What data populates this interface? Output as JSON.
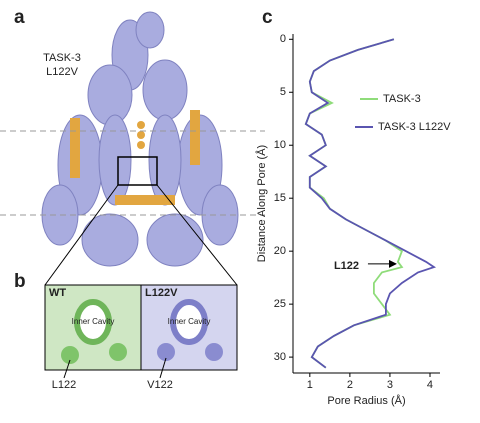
{
  "panels": {
    "a": {
      "letter": "a",
      "label_lines": [
        "TASK-3",
        "L122V"
      ]
    },
    "b": {
      "letter": "b",
      "left_title": "WT",
      "right_title": "L122V",
      "left_cavity": "Inner Cavity",
      "right_cavity": "Inner Cavity",
      "left_residue": "L122",
      "right_residue": "V122"
    },
    "c": {
      "letter": "c"
    }
  },
  "chart_data": {
    "type": "line",
    "orientation": "vertical",
    "xlabel": "Pore Radius (Å)",
    "ylabel": "Distance Along Pore (Å)",
    "y": [
      0,
      1,
      2,
      3,
      4,
      5,
      6,
      7,
      8,
      9,
      10,
      11,
      12,
      13,
      14,
      15,
      16,
      17,
      18,
      19,
      20,
      21,
      21.5,
      22,
      23,
      24,
      25,
      26,
      27,
      28,
      29,
      30,
      31
    ],
    "series": [
      {
        "name": "TASK-3",
        "color": "#8fdc7a",
        "values": [
          3.1,
          2.2,
          1.5,
          1.1,
          1.0,
          1.05,
          1.55,
          1.0,
          0.9,
          1.3,
          1.4,
          1.0,
          1.4,
          1.0,
          1.0,
          1.35,
          1.5,
          1.9,
          2.4,
          2.9,
          3.3,
          3.2,
          3.3,
          2.8,
          2.6,
          2.6,
          2.8,
          3.0,
          2.1,
          1.6,
          1.2,
          1.05,
          1.4
        ]
      },
      {
        "name": "TASK-3 L122V",
        "color": "#5a55b0",
        "values": [
          3.1,
          2.2,
          1.5,
          1.1,
          1.0,
          1.05,
          1.45,
          1.0,
          0.9,
          1.3,
          1.4,
          1.0,
          1.4,
          1.0,
          1.0,
          1.3,
          1.5,
          1.9,
          2.4,
          2.9,
          3.4,
          3.9,
          4.1,
          3.7,
          3.3,
          3.0,
          2.9,
          2.9,
          2.1,
          1.6,
          1.2,
          1.05,
          1.4
        ]
      }
    ],
    "xlim": [
      0.58,
      4.25
    ],
    "xticks": [
      1,
      2,
      3,
      4
    ],
    "ylim": [
      -0.5,
      31.5
    ],
    "yticks": [
      0,
      5,
      10,
      15,
      20,
      25,
      30
    ],
    "y_inverted": true,
    "annotation": {
      "text": "L122",
      "x": 3.15,
      "y": 21.2
    }
  }
}
